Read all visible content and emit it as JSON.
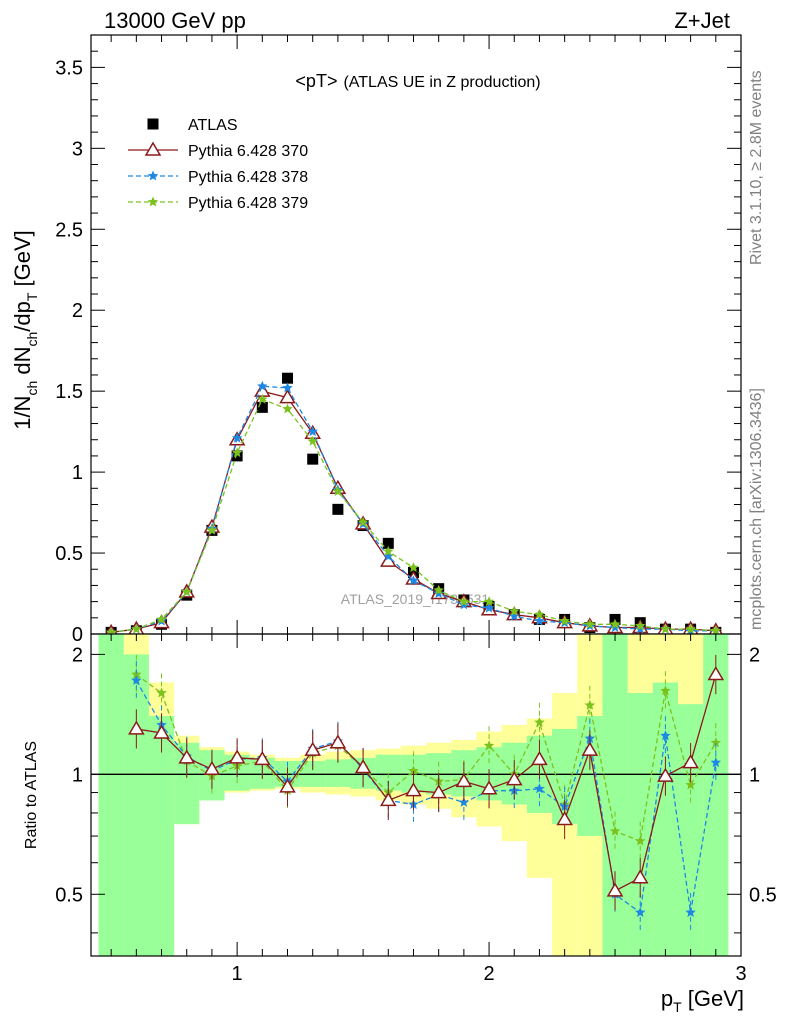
{
  "header": {
    "energy_label": "13000 GeV pp",
    "process_label": "Z+Jet"
  },
  "side_labels": {
    "rivet": "Rivet 3.1.10, ≥ 2.8M events",
    "mcplots": "mcplots.cern.ch [arXiv:1306.3436]"
  },
  "watermark": "ATLAS_2019_I1736531",
  "colors": {
    "data": "#000000",
    "pythia_370": "#8b1a1a",
    "pythia_378": "#1e88e5",
    "pythia_379": "#7cc21f",
    "band_inner": "#99ff99",
    "band_outer": "#ffff99"
  },
  "chart_data": [
    {
      "type": "scatter",
      "title": "<pT> (ATLAS UE in Z production)",
      "title_main": "<pT>",
      "title_sub": "(ATLAS UE in Z production)",
      "ylabel": "1/N_ch dN_ch/dp_T [GeV]",
      "xlim": [
        0.42,
        3.0
      ],
      "ylim": [
        0,
        3.7
      ],
      "yticks": [
        0,
        0.5,
        1,
        1.5,
        2,
        2.5,
        3,
        3.5
      ],
      "ytick_labels": [
        "0",
        "0.5",
        "1",
        "1.5",
        "2",
        "2.5",
        "3",
        "3.5"
      ],
      "legend_position": "top-left",
      "x": [
        0.5,
        0.6,
        0.7,
        0.8,
        0.9,
        1.0,
        1.1,
        1.2,
        1.3,
        1.4,
        1.5,
        1.6,
        1.7,
        1.8,
        1.9,
        2.0,
        2.1,
        2.2,
        2.3,
        2.4,
        2.5,
        2.6,
        2.7,
        2.8,
        2.9
      ],
      "series": [
        {
          "name": "ATLAS",
          "marker": "square",
          "values": [
            0.01,
            0.02,
            0.06,
            0.24,
            0.64,
            1.1,
            1.4,
            1.58,
            1.08,
            0.77,
            0.67,
            0.56,
            0.38,
            0.28,
            0.21,
            0.17,
            0.12,
            0.09,
            0.09,
            0.04,
            0.09,
            0.07,
            0.03,
            0.03,
            0.01
          ]
        },
        {
          "name": "Pythia 6.428 370",
          "marker": "triangle",
          "values": [
            0.01,
            0.03,
            0.07,
            0.26,
            0.66,
            1.2,
            1.5,
            1.46,
            1.24,
            0.9,
            0.68,
            0.45,
            0.34,
            0.25,
            0.2,
            0.15,
            0.12,
            0.1,
            0.07,
            0.05,
            0.04,
            0.04,
            0.03,
            0.03,
            0.02
          ]
        },
        {
          "name": "Pythia 6.428 378",
          "marker": "star",
          "values": [
            0.01,
            0.03,
            0.08,
            0.26,
            0.65,
            1.21,
            1.53,
            1.52,
            1.25,
            0.89,
            0.68,
            0.48,
            0.33,
            0.25,
            0.18,
            0.16,
            0.11,
            0.08,
            0.07,
            0.05,
            0.04,
            0.03,
            0.03,
            0.02,
            0.02
          ]
        },
        {
          "name": "Pythia 6.428 379",
          "marker": "star",
          "values": [
            0.01,
            0.03,
            0.09,
            0.26,
            0.64,
            1.12,
            1.45,
            1.39,
            1.19,
            0.88,
            0.69,
            0.51,
            0.41,
            0.27,
            0.2,
            0.2,
            0.14,
            0.12,
            0.08,
            0.06,
            0.06,
            0.05,
            0.03,
            0.03,
            0.02
          ]
        }
      ]
    },
    {
      "type": "scatter",
      "title": "",
      "xlabel": "p_T [GeV]",
      "ylabel": "Ratio to ATLAS",
      "xlim": [
        0.42,
        3.0
      ],
      "ylim": [
        0.35,
        2.25
      ],
      "xticks": [
        1,
        2,
        3
      ],
      "xtick_labels": [
        "1",
        "2",
        "3"
      ],
      "yticks": [
        0.5,
        1,
        2
      ],
      "ytick_labels": [
        "0.5",
        "1",
        "2"
      ],
      "reference_line": 1,
      "x": [
        0.6,
        0.7,
        0.8,
        0.9,
        1.0,
        1.1,
        1.2,
        1.3,
        1.4,
        1.5,
        1.6,
        1.7,
        1.8,
        1.9,
        2.0,
        2.1,
        2.2,
        2.3,
        2.4,
        2.5,
        2.6,
        2.7,
        2.8,
        2.9
      ],
      "band_x_edges": [
        0.45,
        0.55,
        0.65,
        0.75,
        0.85,
        0.95,
        1.05,
        1.15,
        1.25,
        1.35,
        1.45,
        1.55,
        1.65,
        1.75,
        1.85,
        1.95,
        2.05,
        2.15,
        2.25,
        2.35,
        2.45,
        2.55,
        2.65,
        2.75,
        2.85,
        2.95
      ],
      "band_inner": [
        [
          0.35,
          2.25
        ],
        [
          0.35,
          2.0
        ],
        [
          0.35,
          1.4
        ],
        [
          0.75,
          1.2
        ],
        [
          0.86,
          1.15
        ],
        [
          0.91,
          1.12
        ],
        [
          0.92,
          1.1
        ],
        [
          0.93,
          1.08
        ],
        [
          0.93,
          1.08
        ],
        [
          0.93,
          1.09
        ],
        [
          0.92,
          1.1
        ],
        [
          0.91,
          1.12
        ],
        [
          0.9,
          1.12
        ],
        [
          0.89,
          1.13
        ],
        [
          0.88,
          1.15
        ],
        [
          0.86,
          1.17
        ],
        [
          0.84,
          1.2
        ],
        [
          0.8,
          1.25
        ],
        [
          0.75,
          1.3
        ],
        [
          0.7,
          1.4
        ],
        [
          0.35,
          2.25
        ],
        [
          0.35,
          1.6
        ],
        [
          0.35,
          1.7
        ],
        [
          0.35,
          1.5
        ],
        [
          0.35,
          2.25
        ]
      ],
      "band_outer": [
        [
          0.35,
          2.25
        ],
        [
          0.35,
          2.25
        ],
        [
          0.35,
          1.7
        ],
        [
          0.75,
          1.25
        ],
        [
          0.86,
          1.17
        ],
        [
          0.9,
          1.14
        ],
        [
          0.91,
          1.12
        ],
        [
          0.92,
          1.1
        ],
        [
          0.9,
          1.12
        ],
        [
          0.89,
          1.14
        ],
        [
          0.88,
          1.15
        ],
        [
          0.86,
          1.16
        ],
        [
          0.84,
          1.18
        ],
        [
          0.82,
          1.2
        ],
        [
          0.78,
          1.22
        ],
        [
          0.74,
          1.28
        ],
        [
          0.68,
          1.33
        ],
        [
          0.55,
          1.38
        ],
        [
          0.35,
          1.6
        ],
        [
          0.35,
          2.25
        ],
        [
          0.35,
          2.25
        ],
        [
          0.35,
          2.25
        ],
        [
          0.35,
          2.25
        ],
        [
          0.35,
          2.25
        ],
        [
          0.35,
          2.25
        ]
      ],
      "series": [
        {
          "name": "Pythia 6.428 370",
          "marker": "triangle",
          "values": [
            1.3,
            1.27,
            1.1,
            1.03,
            1.1,
            1.09,
            0.93,
            1.15,
            1.2,
            1.04,
            0.86,
            0.91,
            0.9,
            0.96,
            0.92,
            0.97,
            1.09,
            0.77,
            1.15,
            0.51,
            0.55,
            0.99,
            1.07,
            1.78
          ]
        },
        {
          "name": "Pythia 6.428 378",
          "marker": "star",
          "values": [
            1.72,
            1.33,
            1.11,
            1.02,
            1.09,
            1.1,
            0.96,
            1.16,
            1.21,
            1.03,
            0.86,
            0.84,
            0.89,
            0.85,
            0.91,
            0.91,
            0.92,
            0.83,
            1.23,
            0.5,
            0.45,
            1.25,
            0.45,
            1.07
          ]
        },
        {
          "name": "Pythia 6.428 379",
          "marker": "star",
          "values": [
            1.78,
            1.6,
            1.08,
            0.99,
            1.05,
            1.08,
            0.91,
            1.13,
            1.18,
            1.04,
            0.9,
            1.02,
            0.96,
            0.97,
            1.18,
            1.0,
            1.35,
            0.84,
            1.49,
            0.72,
            0.68,
            1.62,
            0.94,
            1.2
          ]
        }
      ]
    }
  ]
}
